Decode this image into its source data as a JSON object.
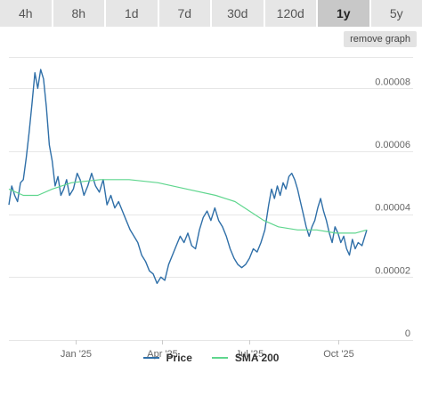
{
  "tabs": [
    {
      "label": "4h",
      "active": false
    },
    {
      "label": "8h",
      "active": false
    },
    {
      "label": "1d",
      "active": false
    },
    {
      "label": "7d",
      "active": false
    },
    {
      "label": "30d",
      "active": false
    },
    {
      "label": "120d",
      "active": false
    },
    {
      "label": "1y",
      "active": true
    },
    {
      "label": "5y",
      "active": false
    }
  ],
  "remove_graph_label": "remove graph",
  "colors": {
    "price": "#2f6fa8",
    "sma": "#5fd68e",
    "grid": "#e6e6e6",
    "axis_text": "#666666"
  },
  "legend": [
    {
      "label": "Price",
      "color": "#2f6fa8"
    },
    {
      "label": "SMA 200",
      "color": "#5fd68e"
    }
  ],
  "chart_data": {
    "type": "line",
    "title": "",
    "xlabel": "",
    "ylabel": "",
    "x_range": [
      "2024-10-24",
      "2025-10-31"
    ],
    "ylim": [
      0,
      9e-05
    ],
    "y_ticks": [
      {
        "value": 0,
        "label": "0"
      },
      {
        "value": 2e-05,
        "label": "0.00002"
      },
      {
        "value": 4e-05,
        "label": "0.00004"
      },
      {
        "value": 6e-05,
        "label": "0.00006"
      },
      {
        "value": 8e-05,
        "label": "0.00008"
      }
    ],
    "x_ticks": [
      {
        "value": "2025-01-01",
        "label": "Jan '25"
      },
      {
        "value": "2025-04-01",
        "label": "Apr '25"
      },
      {
        "value": "2025-07-01",
        "label": "Jul '25"
      },
      {
        "value": "2025-10-01",
        "label": "Oct '25"
      }
    ],
    "grid": true,
    "legend_position": "bottom-center",
    "series": [
      {
        "name": "Price",
        "points": [
          [
            "2024-10-24",
            4.3e-05
          ],
          [
            "2024-10-27",
            4.9e-05
          ],
          [
            "2024-10-30",
            4.6e-05
          ],
          [
            "2024-11-02",
            4.4e-05
          ],
          [
            "2024-11-05",
            5e-05
          ],
          [
            "2024-11-08",
            5.1e-05
          ],
          [
            "2024-11-11",
            5.8e-05
          ],
          [
            "2024-11-14",
            6.6e-05
          ],
          [
            "2024-11-17",
            7.5e-05
          ],
          [
            "2024-11-20",
            8.5e-05
          ],
          [
            "2024-11-23",
            8e-05
          ],
          [
            "2024-11-26",
            8.6e-05
          ],
          [
            "2024-11-29",
            8.3e-05
          ],
          [
            "2024-12-02",
            7.4e-05
          ],
          [
            "2024-12-05",
            6.2e-05
          ],
          [
            "2024-12-08",
            5.7e-05
          ],
          [
            "2024-12-11",
            4.9e-05
          ],
          [
            "2024-12-14",
            5.2e-05
          ],
          [
            "2024-12-17",
            4.6e-05
          ],
          [
            "2024-12-20",
            4.8e-05
          ],
          [
            "2024-12-23",
            5.1e-05
          ],
          [
            "2024-12-26",
            4.6e-05
          ],
          [
            "2024-12-30",
            4.8e-05
          ],
          [
            "2025-01-03",
            5.3e-05
          ],
          [
            "2025-01-06",
            5.1e-05
          ],
          [
            "2025-01-10",
            4.6e-05
          ],
          [
            "2025-01-14",
            4.9e-05
          ],
          [
            "2025-01-18",
            5.3e-05
          ],
          [
            "2025-01-22",
            4.9e-05
          ],
          [
            "2025-01-26",
            4.7e-05
          ],
          [
            "2025-01-30",
            5.1e-05
          ],
          [
            "2025-02-03",
            4.3e-05
          ],
          [
            "2025-02-07",
            4.6e-05
          ],
          [
            "2025-02-11",
            4.2e-05
          ],
          [
            "2025-02-15",
            4.4e-05
          ],
          [
            "2025-02-19",
            4.1e-05
          ],
          [
            "2025-02-23",
            3.8e-05
          ],
          [
            "2025-02-27",
            3.5e-05
          ],
          [
            "2025-03-03",
            3.3e-05
          ],
          [
            "2025-03-07",
            3.1e-05
          ],
          [
            "2025-03-11",
            2.7e-05
          ],
          [
            "2025-03-15",
            2.5e-05
          ],
          [
            "2025-03-19",
            2.2e-05
          ],
          [
            "2025-03-23",
            2.1e-05
          ],
          [
            "2025-03-27",
            1.8e-05
          ],
          [
            "2025-03-31",
            2e-05
          ],
          [
            "2025-04-04",
            1.9e-05
          ],
          [
            "2025-04-08",
            2.4e-05
          ],
          [
            "2025-04-12",
            2.7e-05
          ],
          [
            "2025-04-16",
            3e-05
          ],
          [
            "2025-04-20",
            3.3e-05
          ],
          [
            "2025-04-24",
            3.1e-05
          ],
          [
            "2025-04-28",
            3.4e-05
          ],
          [
            "2025-05-02",
            3e-05
          ],
          [
            "2025-05-06",
            2.9e-05
          ],
          [
            "2025-05-10",
            3.5e-05
          ],
          [
            "2025-05-14",
            3.9e-05
          ],
          [
            "2025-05-18",
            4.1e-05
          ],
          [
            "2025-05-22",
            3.8e-05
          ],
          [
            "2025-05-26",
            4.2e-05
          ],
          [
            "2025-05-30",
            3.8e-05
          ],
          [
            "2025-06-03",
            3.6e-05
          ],
          [
            "2025-06-07",
            3.3e-05
          ],
          [
            "2025-06-11",
            2.9e-05
          ],
          [
            "2025-06-15",
            2.6e-05
          ],
          [
            "2025-06-19",
            2.4e-05
          ],
          [
            "2025-06-23",
            2.3e-05
          ],
          [
            "2025-06-27",
            2.4e-05
          ],
          [
            "2025-07-01",
            2.6e-05
          ],
          [
            "2025-07-05",
            2.9e-05
          ],
          [
            "2025-07-09",
            2.8e-05
          ],
          [
            "2025-07-13",
            3.1e-05
          ],
          [
            "2025-07-17",
            3.5e-05
          ],
          [
            "2025-07-21",
            4.3e-05
          ],
          [
            "2025-07-24",
            4.8e-05
          ],
          [
            "2025-07-27",
            4.5e-05
          ],
          [
            "2025-07-30",
            4.9e-05
          ],
          [
            "2025-08-02",
            4.6e-05
          ],
          [
            "2025-08-05",
            5e-05
          ],
          [
            "2025-08-08",
            4.8e-05
          ],
          [
            "2025-08-11",
            5.2e-05
          ],
          [
            "2025-08-14",
            5.3e-05
          ],
          [
            "2025-08-17",
            5.1e-05
          ],
          [
            "2025-08-20",
            4.8e-05
          ],
          [
            "2025-08-23",
            4.4e-05
          ],
          [
            "2025-08-26",
            4e-05
          ],
          [
            "2025-08-29",
            3.6e-05
          ],
          [
            "2025-09-01",
            3.3e-05
          ],
          [
            "2025-09-04",
            3.6e-05
          ],
          [
            "2025-09-07",
            3.8e-05
          ],
          [
            "2025-09-10",
            4.2e-05
          ],
          [
            "2025-09-13",
            4.5e-05
          ],
          [
            "2025-09-16",
            4.1e-05
          ],
          [
            "2025-09-19",
            3.8e-05
          ],
          [
            "2025-09-22",
            3.4e-05
          ],
          [
            "2025-09-25",
            3.1e-05
          ],
          [
            "2025-09-28",
            3.6e-05
          ],
          [
            "2025-10-01",
            3.4e-05
          ],
          [
            "2025-10-04",
            3.1e-05
          ],
          [
            "2025-10-07",
            3.3e-05
          ],
          [
            "2025-10-10",
            2.9e-05
          ],
          [
            "2025-10-13",
            2.7e-05
          ],
          [
            "2025-10-16",
            3.2e-05
          ],
          [
            "2025-10-19",
            2.9e-05
          ],
          [
            "2025-10-22",
            3.1e-05
          ],
          [
            "2025-10-26",
            3e-05
          ],
          [
            "2025-10-31",
            3.5e-05
          ]
        ]
      },
      {
        "name": "SMA 200",
        "points": [
          [
            "2024-10-24",
            4.8e-05
          ],
          [
            "2024-11-08",
            4.6e-05
          ],
          [
            "2024-11-23",
            4.6e-05
          ],
          [
            "2024-12-08",
            4.8e-05
          ],
          [
            "2024-12-28",
            5e-05
          ],
          [
            "2025-01-27",
            5.1e-05
          ],
          [
            "2025-02-26",
            5.1e-05
          ],
          [
            "2025-03-28",
            5e-05
          ],
          [
            "2025-04-27",
            4.8e-05
          ],
          [
            "2025-05-27",
            4.6e-05
          ],
          [
            "2025-06-16",
            4.4e-05
          ],
          [
            "2025-07-01",
            4.1e-05
          ],
          [
            "2025-07-16",
            3.8e-05
          ],
          [
            "2025-07-31",
            3.6e-05
          ],
          [
            "2025-08-20",
            3.5e-05
          ],
          [
            "2025-09-09",
            3.5e-05
          ],
          [
            "2025-09-29",
            3.4e-05
          ],
          [
            "2025-10-19",
            3.4e-05
          ],
          [
            "2025-10-31",
            3.5e-05
          ]
        ]
      }
    ]
  }
}
